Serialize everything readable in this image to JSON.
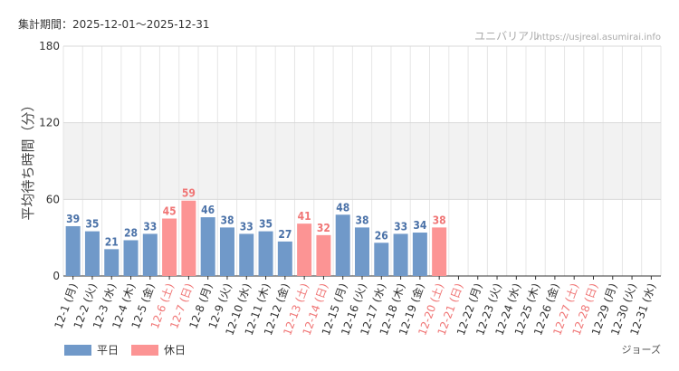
{
  "header": {
    "period": "集計期間：2025-12-01〜2025-12-31",
    "site_name": "ユニバリアル",
    "site_url": "https://usjreal.asumirai.info"
  },
  "legend": {
    "weekday": "平日",
    "holiday": "休日"
  },
  "footer": {
    "attraction": "ジョーズ"
  },
  "colors": {
    "weekday": "#7099c9",
    "holiday": "#fc9494",
    "weekday_label": "#4b72a8",
    "holiday_label": "#f07575",
    "band": "#f2f2f2",
    "grid": "#e6e6e6",
    "axis_text": "#333333",
    "watermark": "#aaaaaa"
  },
  "chart_data": {
    "type": "bar",
    "ylabel": "平均待ち時間（分）",
    "ylim": [
      0,
      180
    ],
    "yticks": [
      0,
      60,
      120,
      180
    ],
    "shaded_band": [
      60,
      120
    ],
    "categories": [
      "12-1 (月)",
      "12-2 (火)",
      "12-3 (水)",
      "12-4 (木)",
      "12-5 (金)",
      "12-6 (土)",
      "12-7 (日)",
      "12-8 (月)",
      "12-9 (火)",
      "12-10 (水)",
      "12-11 (木)",
      "12-12 (金)",
      "12-13 (土)",
      "12-14 (日)",
      "12-15 (月)",
      "12-16 (火)",
      "12-17 (水)",
      "12-18 (木)",
      "12-19 (金)",
      "12-20 (土)",
      "12-21 (日)",
      "12-22 (月)",
      "12-23 (火)",
      "12-24 (水)",
      "12-25 (木)",
      "12-26 (金)",
      "12-27 (土)",
      "12-28 (日)",
      "12-29 (月)",
      "12-30 (火)",
      "12-31 (水)"
    ],
    "day_type": [
      "weekday",
      "weekday",
      "weekday",
      "weekday",
      "weekday",
      "holiday",
      "holiday",
      "weekday",
      "weekday",
      "weekday",
      "weekday",
      "weekday",
      "holiday",
      "holiday",
      "weekday",
      "weekday",
      "weekday",
      "weekday",
      "weekday",
      "holiday",
      "holiday",
      "weekday",
      "weekday",
      "weekday",
      "weekday",
      "weekday",
      "holiday",
      "holiday",
      "weekday",
      "weekday",
      "weekday"
    ],
    "values": [
      39,
      35,
      21,
      28,
      33,
      45,
      59,
      46,
      38,
      33,
      35,
      27,
      41,
      32,
      48,
      38,
      26,
      33,
      34,
      38,
      null,
      null,
      null,
      null,
      null,
      null,
      null,
      null,
      null,
      null,
      null
    ]
  }
}
